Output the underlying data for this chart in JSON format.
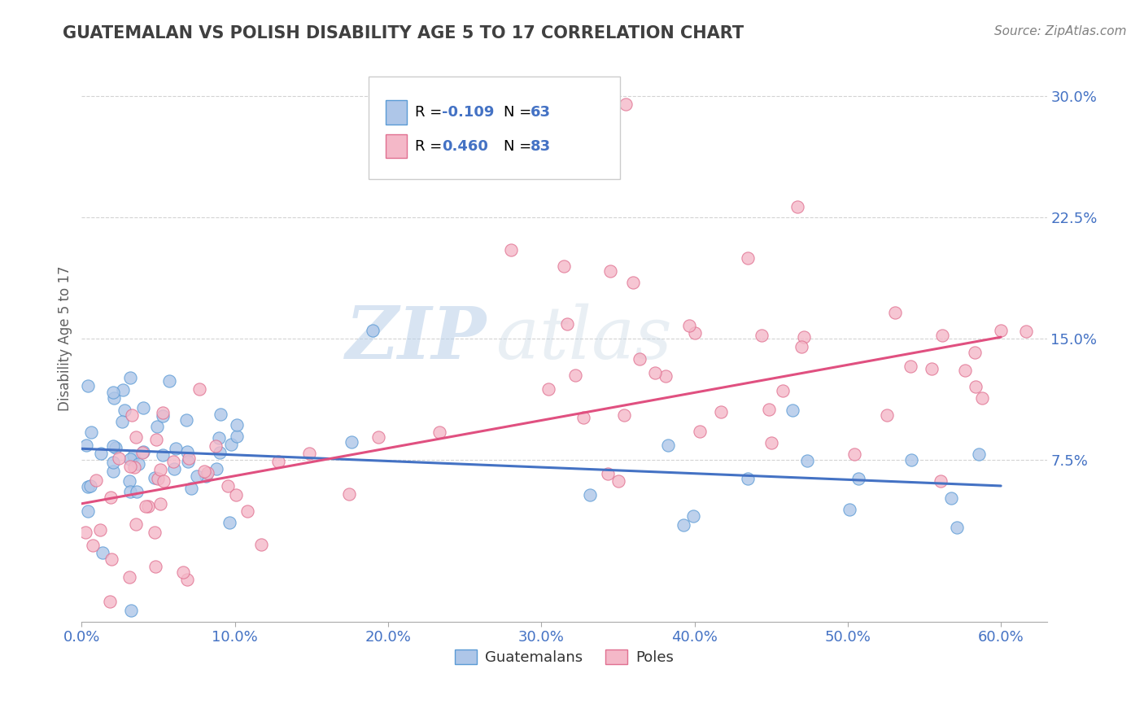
{
  "title": "GUATEMALAN VS POLISH DISABILITY AGE 5 TO 17 CORRELATION CHART",
  "source_text": "Source: ZipAtlas.com",
  "ylabel": "Disability Age 5 to 17",
  "xlim": [
    0.0,
    0.63
  ],
  "ylim": [
    -0.025,
    0.325
  ],
  "ytick_labels": [
    "7.5%",
    "15.0%",
    "22.5%",
    "30.0%"
  ],
  "ytick_vals": [
    0.075,
    0.15,
    0.225,
    0.3
  ],
  "xtick_labels": [
    "0.0%",
    "10.0%",
    "20.0%",
    "30.0%",
    "40.0%",
    "50.0%",
    "60.0%"
  ],
  "xtick_vals": [
    0.0,
    0.1,
    0.2,
    0.3,
    0.4,
    0.5,
    0.6
  ],
  "guatemalan_fill_color": "#aec6e8",
  "guatemalan_edge_color": "#5b9bd5",
  "polish_fill_color": "#f4b8c8",
  "polish_edge_color": "#e07090",
  "guatemalan_line_color": "#4472c4",
  "polish_line_color": "#e05080",
  "legend_R_guatemalan": "-0.109",
  "legend_N_guatemalan": "63",
  "legend_R_polish": "0.460",
  "legend_N_polish": "83",
  "watermark_zip": "ZIP",
  "watermark_atlas": "atlas",
  "background_color": "#ffffff",
  "grid_color": "#c8c8c8",
  "tick_color": "#4472c4",
  "title_color": "#404040",
  "ylabel_color": "#606060",
  "source_color": "#808080",
  "guat_line_start_y": 0.082,
  "guat_line_end_y": 0.059,
  "polish_line_start_y": 0.048,
  "polish_line_end_y": 0.151
}
